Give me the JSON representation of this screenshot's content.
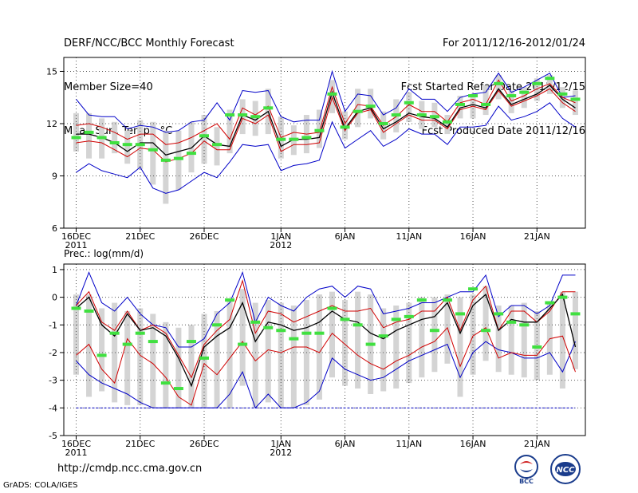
{
  "header": {
    "title": "DERF/NCC/BCC Monthly Forecast",
    "member_size": "Member Size=40",
    "variable": "Mean Surf. Temp.: °C",
    "forecast_period": "For 2011/12/16-2012/01/24",
    "fcst_started": "Fcst Started Refer Date 2011/12/15",
    "fcst_produced": "Fcst Produced Date 2011/12/16"
  },
  "footer": {
    "url": "http://cmdp.ncc.cma.gov.cn",
    "credit": "GrADS: COLA/IGES",
    "logo_bcc_text": "BCC",
    "logo_ncc_text": "NCC"
  },
  "colors": {
    "grid": "#555555",
    "box": "#d4d4d4",
    "median": "#000000",
    "band_inner": "#d00000",
    "band_outer": "#0000c8",
    "mean_marker": "#40e040",
    "floor_line": "#0000c8"
  },
  "chart_data": [
    {
      "type": "line",
      "title": "Mean Surf. Temp.: °C",
      "x_dates": [
        "2011-12-16",
        "2011-12-17",
        "2011-12-18",
        "2011-12-19",
        "2011-12-20",
        "2011-12-21",
        "2011-12-22",
        "2011-12-23",
        "2011-12-24",
        "2011-12-25",
        "2011-12-26",
        "2011-12-27",
        "2011-12-28",
        "2011-12-29",
        "2011-12-30",
        "2011-12-31",
        "2012-01-01",
        "2012-01-02",
        "2012-01-03",
        "2012-01-04",
        "2012-01-05",
        "2012-01-06",
        "2012-01-07",
        "2012-01-08",
        "2012-01-09",
        "2012-01-10",
        "2012-01-11",
        "2012-01-12",
        "2012-01-13",
        "2012-01-14",
        "2012-01-15",
        "2012-01-16",
        "2012-01-17",
        "2012-01-18",
        "2012-01-19",
        "2012-01-20",
        "2012-01-21",
        "2012-01-22",
        "2012-01-23",
        "2012-01-24"
      ],
      "x_ticks": [
        {
          "label": "16DEC",
          "sublabel": "2011",
          "index": 0
        },
        {
          "label": "21DEC",
          "sublabel": "",
          "index": 5
        },
        {
          "label": "26DEC",
          "sublabel": "",
          "index": 10
        },
        {
          "label": "1JAN",
          "sublabel": "2012",
          "index": 16
        },
        {
          "label": "6JAN",
          "sublabel": "",
          "index": 21
        },
        {
          "label": "11JAN",
          "sublabel": "",
          "index": 26
        },
        {
          "label": "16JAN",
          "sublabel": "",
          "index": 31
        },
        {
          "label": "21JAN",
          "sublabel": "",
          "index": 36
        }
      ],
      "ylim": [
        6,
        15.8
      ],
      "y_ticks": [
        6,
        9,
        12,
        15
      ],
      "grid": true,
      "series": [
        {
          "name": "max",
          "values": [
            13.4,
            12.5,
            12.4,
            12.4,
            11.7,
            11.9,
            11.8,
            11.5,
            11.6,
            12.1,
            12.2,
            13.2,
            12.2,
            13.9,
            13.8,
            13.9,
            12.4,
            12.1,
            12.2,
            12.2,
            15,
            12.7,
            13.7,
            13.6,
            12.5,
            12.9,
            14,
            13.4,
            13.4,
            12.7,
            13.5,
            13.7,
            13.8,
            14.9,
            13.8,
            14.1,
            14.5,
            14.9,
            13.5,
            13.6
          ]
        },
        {
          "name": "upper",
          "values": [
            11.9,
            12,
            11.8,
            11.5,
            11.1,
            11.4,
            11.4,
            10.8,
            10.9,
            11.2,
            11.6,
            12,
            11.1,
            12.9,
            12.5,
            13,
            11.2,
            11.5,
            11.4,
            11.5,
            14.1,
            12,
            13.1,
            13,
            11.9,
            12.4,
            13.1,
            12.7,
            12.7,
            12.1,
            13.2,
            13.4,
            13.1,
            14.5,
            13.3,
            13.6,
            14,
            14.3,
            13.5,
            13.2
          ]
        },
        {
          "name": "median",
          "values": [
            11.4,
            11.4,
            11.2,
            10.9,
            10.4,
            10.9,
            10.9,
            10.2,
            10.4,
            10.6,
            11.3,
            10.8,
            10.7,
            12.5,
            12.2,
            12.7,
            10.7,
            11.1,
            11.1,
            11.2,
            13.8,
            11.7,
            12.7,
            12.9,
            11.7,
            12.1,
            12.6,
            12.4,
            12.3,
            11.8,
            12.9,
            13.1,
            12.9,
            14,
            13.1,
            13.4,
            13.7,
            14.2,
            13.4,
            12.9
          ]
        },
        {
          "name": "lower",
          "values": [
            10.9,
            11,
            10.9,
            10.5,
            10.1,
            10.6,
            10.5,
            9.8,
            10,
            10.3,
            11,
            10.5,
            10.5,
            12.3,
            12,
            12.5,
            10.4,
            10.8,
            10.8,
            10.9,
            13.5,
            11.6,
            12.6,
            12.8,
            11.5,
            12,
            12.5,
            12.2,
            12.2,
            11.7,
            12.8,
            13,
            12.8,
            13.9,
            13,
            13.3,
            13.6,
            14,
            13.2,
            12.7
          ]
        },
        {
          "name": "min",
          "values": [
            9.2,
            9.7,
            9.3,
            9.1,
            8.9,
            9.5,
            8.3,
            8,
            8.2,
            8.7,
            9.2,
            8.9,
            9.8,
            10.8,
            10.7,
            10.8,
            9.3,
            9.6,
            9.7,
            9.9,
            12.1,
            10.6,
            11.1,
            11.6,
            10.7,
            11.1,
            11.7,
            11.4,
            11.4,
            10.8,
            11.8,
            11.8,
            11.9,
            13,
            12.2,
            12.4,
            12.7,
            13.2,
            12.3,
            11.8
          ]
        },
        {
          "name": "mean",
          "values": [
            11.2,
            11.5,
            11.2,
            10.9,
            10.8,
            10.8,
            10.5,
            9.9,
            10,
            10.3,
            11.3,
            10.8,
            12.5,
            12.5,
            12.4,
            12.9,
            11.1,
            11.1,
            11.2,
            11.6,
            13.7,
            11.8,
            12.7,
            13,
            12,
            12.5,
            13.2,
            12.5,
            12.4,
            12.1,
            13.1,
            13.6,
            13.1,
            14.3,
            13.6,
            13.8,
            14.3,
            14.6,
            13.7,
            13.4
          ]
        },
        {
          "name": "box_high",
          "values": [
            12.6,
            12.6,
            12.3,
            12.1,
            11.6,
            12.2,
            12.1,
            11.6,
            11.6,
            12.1,
            12.5,
            11.8,
            12.8,
            13.4,
            13.3,
            14,
            12.4,
            11.9,
            12.5,
            12.8,
            14.5,
            12.7,
            14,
            14,
            12.7,
            13.4,
            13.8,
            13.3,
            13.2,
            12.5,
            13.6,
            13.6,
            14.2,
            14.8,
            13.9,
            14.1,
            14.6,
            14.8,
            14.1,
            13.9
          ]
        },
        {
          "name": "box_low",
          "values": [
            10.4,
            10,
            10,
            10.3,
            9.7,
            9.4,
            8.5,
            7.4,
            8.2,
            9.2,
            9.7,
            9.6,
            10.3,
            11.4,
            11.3,
            11.4,
            10,
            10.2,
            10.3,
            10.6,
            12.6,
            11.1,
            11.8,
            12.3,
            11.1,
            11.5,
            12.1,
            11.7,
            11.8,
            11.4,
            12.3,
            12.3,
            12.5,
            13.4,
            12.6,
            12.9,
            13.3,
            13.7,
            12.9,
            12.5
          ]
        }
      ]
    },
    {
      "type": "line",
      "title": "Prec.: log(mm/d)",
      "ylim": [
        -5,
        1.2
      ],
      "y_ticks": [
        -5,
        -4,
        -3,
        -2,
        -1,
        0,
        1
      ],
      "floor_value": -4,
      "grid": true,
      "series": [
        {
          "name": "max",
          "values": [
            -0.3,
            0.9,
            -0.2,
            -0.5,
            0,
            -0.6,
            -1,
            -1.1,
            -1.8,
            -1.8,
            -1.5,
            -0.6,
            -0.2,
            0.9,
            -0.9,
            0,
            -0.3,
            -0.5,
            0,
            0.3,
            0.4,
            0,
            0.4,
            0.3,
            -0.6,
            -0.5,
            -0.4,
            -0.2,
            -0.2,
            0,
            0.2,
            0.2,
            0.8,
            -0.7,
            -0.3,
            -0.3,
            -0.6,
            -0.3,
            0.8,
            0.8
          ]
        },
        {
          "name": "upper",
          "values": [
            -0.3,
            0.2,
            -0.9,
            -1.2,
            -0.5,
            -1.2,
            -1,
            -1.3,
            -2.1,
            -2.9,
            -1.7,
            -1.2,
            -0.8,
            0.6,
            -1.3,
            -0.5,
            -0.6,
            -0.9,
            -0.7,
            -0.5,
            -0.3,
            -0.5,
            -0.5,
            -0.4,
            -1.1,
            -0.9,
            -0.8,
            -0.5,
            -0.5,
            0,
            -1.2,
            -0.1,
            0.4,
            -1.2,
            -0.5,
            -0.5,
            -0.9,
            -0.5,
            0.2,
            0.2
          ]
        },
        {
          "name": "median",
          "values": [
            -0.4,
            0,
            -1,
            -1.4,
            -0.6,
            -1.2,
            -1.1,
            -1.4,
            -2.2,
            -3.2,
            -1.8,
            -1.4,
            -1.1,
            -0.2,
            -1.6,
            -0.9,
            -1,
            -1.2,
            -1.1,
            -0.9,
            -0.5,
            -0.8,
            -0.9,
            -1.3,
            -1.5,
            -1.2,
            -1,
            -0.8,
            -0.7,
            -0.2,
            -1.3,
            -0.3,
            0.1,
            -1.2,
            -0.8,
            -0.9,
            -0.9,
            -0.4,
            0.1,
            -1.8
          ]
        },
        {
          "name": "lower",
          "values": [
            -2.1,
            -1.7,
            -2.6,
            -3.1,
            -1.5,
            -2.1,
            -2.4,
            -2.9,
            -3.6,
            -3.9,
            -2.4,
            -2.8,
            -2.2,
            -1.6,
            -2.3,
            -1.9,
            -2,
            -1.8,
            -1.8,
            -2,
            -1.3,
            -1.7,
            -2.1,
            -2.4,
            -2.6,
            -2.3,
            -2.1,
            -1.8,
            -1.6,
            -1.1,
            -2.5,
            -1.4,
            -1.1,
            -2.2,
            -2,
            -2.1,
            -2.1,
            -1.5,
            -1.4,
            -2.7
          ]
        },
        {
          "name": "min",
          "values": [
            -2.3,
            -2.8,
            -3.1,
            -3.3,
            -3.5,
            -3.8,
            -4,
            -4,
            -4,
            -4,
            -4,
            -4,
            -3.5,
            -2.7,
            -4,
            -3.5,
            -4,
            -4,
            -3.8,
            -3.4,
            -2.2,
            -2.6,
            -2.8,
            -3,
            -2.9,
            -2.6,
            -2.3,
            -2.1,
            -1.9,
            -1.7,
            -2.9,
            -2,
            -1.6,
            -1.9,
            -2,
            -2.2,
            -2.2,
            -2,
            -2.7,
            -1.6
          ]
        },
        {
          "name": "mean",
          "values": [
            -0.4,
            -0.5,
            -2.1,
            -1.3,
            -1.7,
            -1.3,
            -1.6,
            -3.1,
            -3.3,
            -1.6,
            -2.2,
            -1,
            -0.1,
            -1.7,
            -0.9,
            -1.1,
            -1.2,
            -1.5,
            -1.3,
            -1.3,
            -0.4,
            -0.8,
            -1,
            -1.7,
            -1.4,
            -0.8,
            -0.7,
            -0.1,
            -1.2,
            -0.1,
            -0.6,
            0.3,
            -1.2,
            -0.6,
            -0.9,
            -1,
            -1.8,
            -0.2,
            0,
            -0.6
          ]
        },
        {
          "name": "box_high",
          "values": [
            0.1,
            0.1,
            -0.4,
            -0.2,
            -0.5,
            -0.4,
            -0.6,
            -0.9,
            -1.1,
            -1,
            -0.6,
            -0.5,
            -0.1,
            0.3,
            -0.2,
            -0.1,
            -0.2,
            -0.3,
            -0.1,
            0.1,
            0.2,
            -0.1,
            0.2,
            0.1,
            -0.4,
            -0.3,
            -0.2,
            0,
            0,
            0.1,
            0,
            0.1,
            0.4,
            -0.3,
            -0.3,
            -0.2,
            -0.5,
            -0.2,
            0.2,
            0.2
          ]
        },
        {
          "name": "box_low",
          "values": [
            -2.8,
            -3.6,
            -3.4,
            -3.8,
            -3.9,
            -3.9,
            -4,
            -4,
            -4,
            -4,
            -4,
            -4,
            -4,
            -3.2,
            -4,
            -3.8,
            -4,
            -4,
            -3.9,
            -3.7,
            -2.9,
            -3.2,
            -3.3,
            -3.5,
            -3.4,
            -3.3,
            -3.1,
            -2.9,
            -2.7,
            -2.4,
            -3.6,
            -2.8,
            -2.3,
            -2.7,
            -2.8,
            -2.9,
            -3,
            -2.8,
            -3.3,
            -2.6
          ]
        }
      ]
    }
  ]
}
